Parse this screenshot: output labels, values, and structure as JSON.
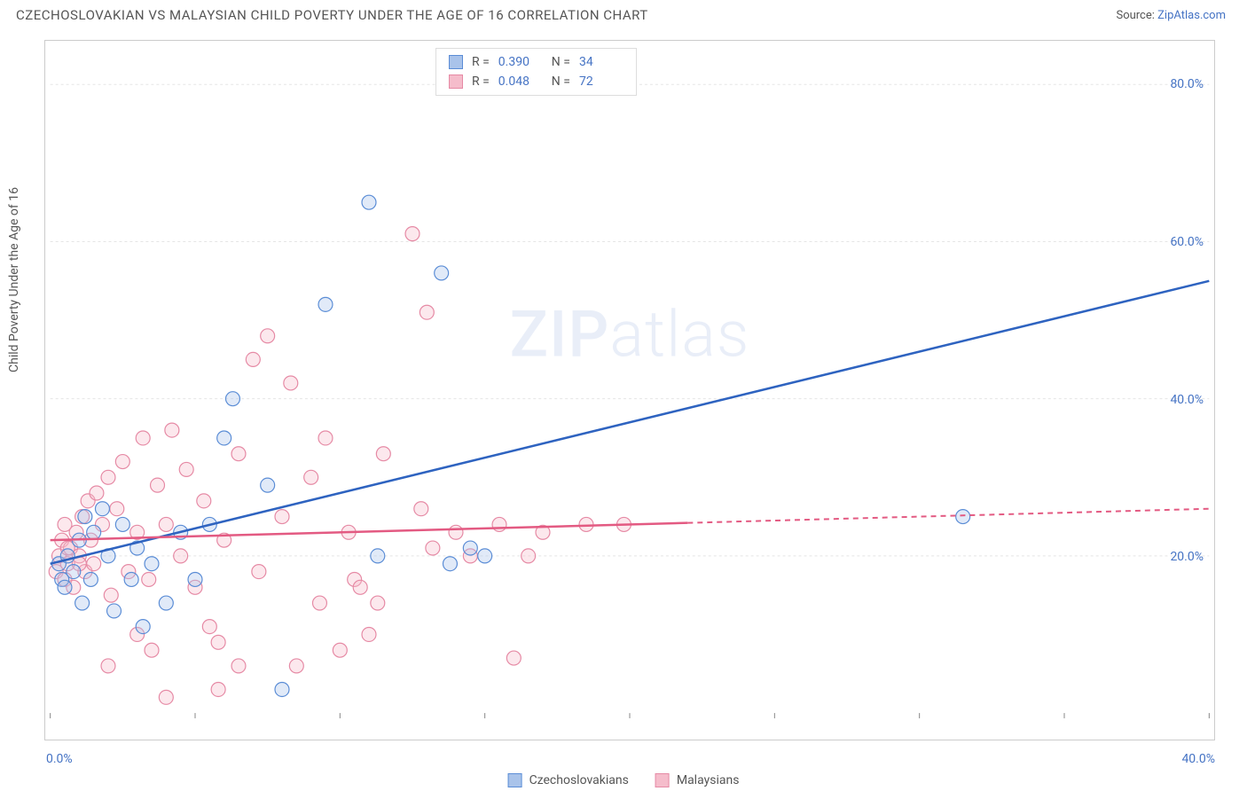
{
  "header": {
    "title": "CZECHOSLOVAKIAN VS MALAYSIAN CHILD POVERTY UNDER THE AGE OF 16 CORRELATION CHART",
    "source_prefix": "Source: ",
    "source_name": "ZipAtlas.com"
  },
  "chart": {
    "type": "scatter",
    "ylabel": "Child Poverty Under the Age of 16",
    "watermark_zip": "ZIP",
    "watermark_atlas": "atlas",
    "xlim": [
      0,
      40
    ],
    "ylim": [
      0,
      85
    ],
    "x_axis_min_label": "0.0%",
    "x_axis_max_label": "40.0%",
    "y_ticks": [
      20,
      40,
      60,
      80
    ],
    "y_tick_labels": [
      "20.0%",
      "40.0%",
      "60.0%",
      "80.0%"
    ],
    "x_tick_positions": [
      0,
      5,
      10,
      15,
      20,
      25,
      30,
      35,
      40
    ],
    "grid_color": "#e5e5e5",
    "background_color": "#ffffff",
    "marker_radius": 8,
    "marker_stroke_width": 1.2,
    "marker_fill_opacity": 0.35,
    "series": [
      {
        "id": "czechoslovakians",
        "label": "Czechoslovakians",
        "color_stroke": "#5b8dd6",
        "color_fill": "#a9c3ea",
        "r_label": "R =",
        "r_value": "0.390",
        "n_label": "N =",
        "n_value": "34",
        "trend": {
          "x1": 0,
          "y1": 19,
          "x2": 40,
          "y2": 55,
          "solid_until_x": 40,
          "color": "#2e63c0",
          "width": 2.5
        },
        "points": [
          [
            0.3,
            19
          ],
          [
            0.4,
            17
          ],
          [
            0.5,
            16
          ],
          [
            0.6,
            20
          ],
          [
            0.8,
            18
          ],
          [
            1.0,
            22
          ],
          [
            1.1,
            14
          ],
          [
            1.2,
            25
          ],
          [
            1.4,
            17
          ],
          [
            1.5,
            23
          ],
          [
            1.8,
            26
          ],
          [
            2.0,
            20
          ],
          [
            2.2,
            13
          ],
          [
            2.5,
            24
          ],
          [
            2.8,
            17
          ],
          [
            3.0,
            21
          ],
          [
            3.2,
            11
          ],
          [
            3.5,
            19
          ],
          [
            4.0,
            14
          ],
          [
            4.5,
            23
          ],
          [
            5.0,
            17
          ],
          [
            5.5,
            24
          ],
          [
            6.0,
            35
          ],
          [
            6.3,
            40
          ],
          [
            7.5,
            29
          ],
          [
            8.0,
            3
          ],
          [
            9.5,
            52
          ],
          [
            11.0,
            65
          ],
          [
            11.3,
            20
          ],
          [
            13.5,
            56
          ],
          [
            13.8,
            19
          ],
          [
            14.5,
            21
          ],
          [
            15.0,
            20
          ],
          [
            31.5,
            25
          ]
        ]
      },
      {
        "id": "malaysians",
        "label": "Malaysians",
        "color_stroke": "#e68aa5",
        "color_fill": "#f5bccb",
        "r_label": "R =",
        "r_value": "0.048",
        "n_label": "N =",
        "n_value": "72",
        "trend": {
          "x1": 0,
          "y1": 22,
          "x2": 40,
          "y2": 26,
          "solid_until_x": 22,
          "color": "#e35a82",
          "width": 2.5
        },
        "points": [
          [
            0.2,
            18
          ],
          [
            0.3,
            20
          ],
          [
            0.4,
            22
          ],
          [
            0.5,
            17
          ],
          [
            0.5,
            24
          ],
          [
            0.6,
            19
          ],
          [
            0.7,
            21
          ],
          [
            0.8,
            16
          ],
          [
            0.9,
            23
          ],
          [
            1.0,
            20
          ],
          [
            1.1,
            25
          ],
          [
            1.2,
            18
          ],
          [
            1.3,
            27
          ],
          [
            1.4,
            22
          ],
          [
            1.5,
            19
          ],
          [
            1.6,
            28
          ],
          [
            1.8,
            24
          ],
          [
            2.0,
            30
          ],
          [
            2.1,
            15
          ],
          [
            2.3,
            26
          ],
          [
            2.5,
            32
          ],
          [
            2.7,
            18
          ],
          [
            3.0,
            23
          ],
          [
            3.2,
            35
          ],
          [
            3.4,
            17
          ],
          [
            3.5,
            8
          ],
          [
            3.7,
            29
          ],
          [
            4.0,
            24
          ],
          [
            4.2,
            36
          ],
          [
            4.5,
            20
          ],
          [
            4.7,
            31
          ],
          [
            5.0,
            16
          ],
          [
            5.3,
            27
          ],
          [
            5.5,
            11
          ],
          [
            5.8,
            9
          ],
          [
            6.0,
            22
          ],
          [
            6.5,
            33
          ],
          [
            7.0,
            45
          ],
          [
            7.2,
            18
          ],
          [
            7.5,
            48
          ],
          [
            8.0,
            25
          ],
          [
            8.3,
            42
          ],
          [
            8.5,
            6
          ],
          [
            9.0,
            30
          ],
          [
            9.3,
            14
          ],
          [
            9.5,
            35
          ],
          [
            10.0,
            8
          ],
          [
            10.3,
            23
          ],
          [
            10.5,
            17
          ],
          [
            10.7,
            16
          ],
          [
            11.0,
            10
          ],
          [
            11.3,
            14
          ],
          [
            11.5,
            33
          ],
          [
            12.5,
            61
          ],
          [
            12.8,
            26
          ],
          [
            13.0,
            51
          ],
          [
            13.2,
            21
          ],
          [
            14.0,
            23
          ],
          [
            14.5,
            20
          ],
          [
            15.5,
            24
          ],
          [
            16.0,
            7
          ],
          [
            16.5,
            20
          ],
          [
            17.0,
            23
          ],
          [
            18.5,
            24
          ],
          [
            19.8,
            24
          ],
          [
            5.8,
            3
          ],
          [
            4.0,
            2
          ],
          [
            3.0,
            10
          ],
          [
            6.5,
            6
          ],
          [
            2.0,
            6
          ],
          [
            1.0,
            19
          ],
          [
            0.6,
            21
          ]
        ]
      }
    ]
  }
}
